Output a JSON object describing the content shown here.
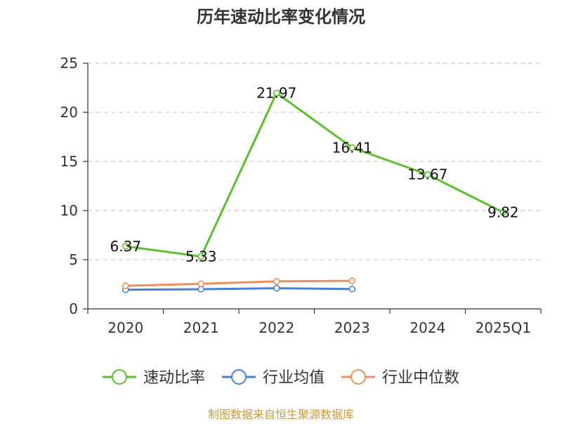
{
  "chart_data": {
    "type": "line",
    "title": "历年速动比率变化情况",
    "categories": [
      "2020",
      "2021",
      "2022",
      "2023",
      "2024",
      "2025Q1"
    ],
    "ylim": [
      0,
      25
    ],
    "yticks": [
      0,
      5,
      10,
      15,
      20,
      25
    ],
    "grid": true,
    "legend_position": "bottom",
    "series": [
      {
        "name": "速动比率",
        "color": "#5cc02c",
        "values": [
          6.37,
          5.33,
          21.97,
          16.41,
          13.67,
          9.82
        ],
        "labels": [
          "6.37",
          "5.33",
          "21.97",
          "16.41",
          "13.67",
          "9.82"
        ]
      },
      {
        "name": "行业均值",
        "color": "#4a7fd8",
        "values": [
          1.95,
          2.0,
          2.1,
          2.02,
          null,
          null
        ],
        "labels": []
      },
      {
        "name": "行业中位数",
        "color": "#f28c5a",
        "values": [
          2.35,
          2.55,
          2.8,
          2.85,
          null,
          null
        ],
        "labels": []
      }
    ]
  },
  "source_text": "制图数据来自恒生聚源数据库"
}
